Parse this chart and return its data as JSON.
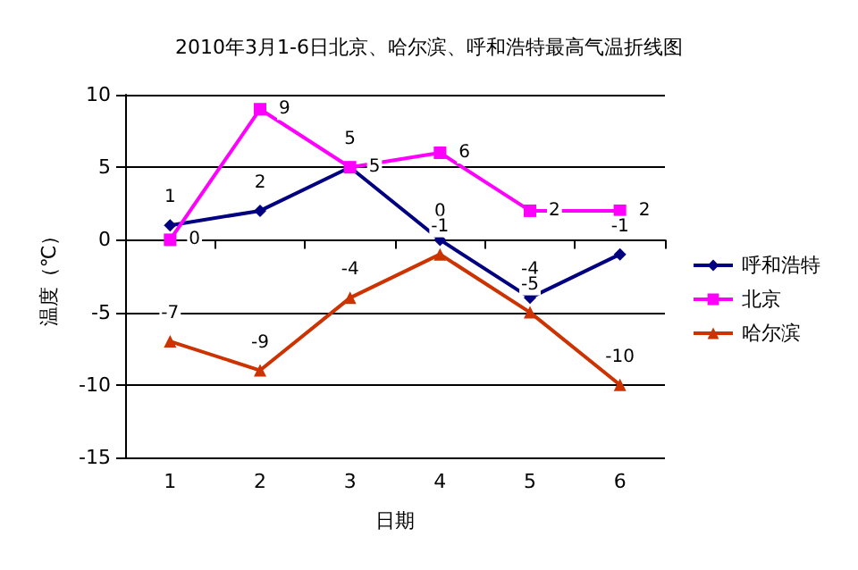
{
  "chart_data": {
    "type": "line",
    "title": "2010年3月1-6日北京、哈尔滨、呼和浩特最高气温折线图",
    "xlabel": "日期",
    "ylabel": "温度（℃）",
    "categories": [
      "1",
      "2",
      "3",
      "4",
      "5",
      "6"
    ],
    "series": [
      {
        "name": "呼和浩特",
        "color": "#000080",
        "marker": "diamond",
        "values": [
          1,
          2,
          5,
          0,
          -4,
          -1
        ]
      },
      {
        "name": "北京",
        "color": "#ff00ff",
        "marker": "square",
        "values": [
          0,
          9,
          5,
          6,
          2,
          2
        ]
      },
      {
        "name": "哈尔滨",
        "color": "#cc3300",
        "marker": "triangle",
        "values": [
          -7,
          -9,
          -4,
          -1,
          -5,
          -10
        ]
      }
    ],
    "ylim": [
      -15,
      10
    ],
    "yticks": [
      -15,
      -10,
      -5,
      0,
      5,
      10
    ],
    "grid": "y",
    "legend": "right",
    "data_labels": true
  }
}
